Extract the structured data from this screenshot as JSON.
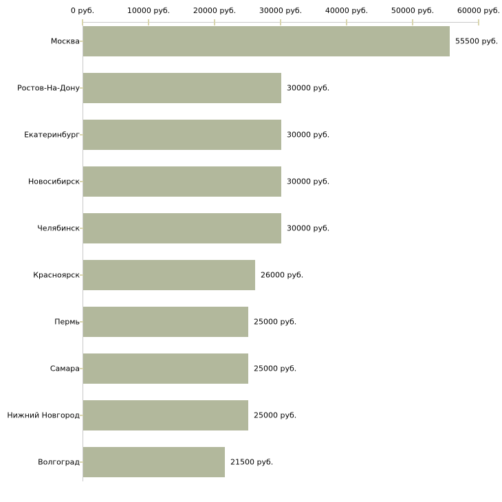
{
  "chart_data": {
    "type": "bar",
    "orientation": "horizontal",
    "title": "",
    "xlabel": "",
    "ylabel": "",
    "categories": [
      "Москва",
      "Ростов-На-Дону",
      "Екатеринбург",
      "Новосибирск",
      "Челябинск",
      "Красноярск",
      "Пермь",
      "Самара",
      "Нижний Новгород",
      "Волгоград"
    ],
    "values": [
      55500,
      30000,
      30000,
      30000,
      30000,
      26000,
      25000,
      25000,
      25000,
      21500
    ],
    "value_labels": [
      "55500 руб.",
      "30000 руб.",
      "30000 руб.",
      "30000 руб.",
      "30000 руб.",
      "26000 руб.",
      "25000 руб.",
      "25000 руб.",
      "25000 руб.",
      "21500 руб."
    ],
    "x_axis": {
      "position": "top",
      "min": 0,
      "max": 60000,
      "tick_values": [
        0,
        10000,
        20000,
        30000,
        40000,
        50000,
        60000
      ],
      "tick_labels": [
        "0 руб.",
        "10000 руб.",
        "20000 руб.",
        "30000 руб.",
        "40000 руб.",
        "50000 руб.",
        "60000 руб."
      ]
    },
    "grid": false,
    "legend": false,
    "colors": {
      "bar": "#b2b89c",
      "axis_line": "#c9c9c9",
      "tick_mark": "#d9d5ad",
      "text": "#000000",
      "background": "#ffffff"
    }
  }
}
